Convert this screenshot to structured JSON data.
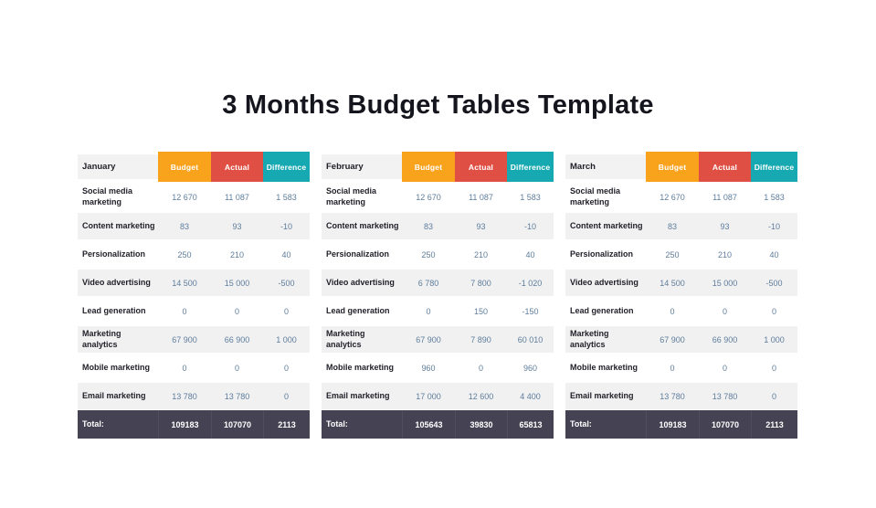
{
  "title": "3 Months Budget Tables Template",
  "columns": [
    "Budget",
    "Actual",
    "Difference"
  ],
  "row_labels": [
    "Social media marketing",
    "Content marketing",
    "Persionalization",
    "Video advertising",
    "Lead generation",
    "Marketing analytics",
    "Mobile marketing",
    "Email marketing"
  ],
  "total_label": "Total:",
  "colors": {
    "budget_header": "#F9A21C",
    "actual_header": "#E04F43",
    "difference_header": "#16A9B1",
    "total_row_bg": "#454254",
    "row_stripe": "#F1F1F2",
    "month_band": "#F2F2F3",
    "value_text": "#5E7D9C",
    "label_text": "#1F1F28",
    "title_text": "#15151E"
  },
  "tables": [
    {
      "month": "January",
      "rows": [
        [
          "12 670",
          "11 087",
          "1 583"
        ],
        [
          "83",
          "93",
          "-10"
        ],
        [
          "250",
          "210",
          "40"
        ],
        [
          "14 500",
          "15 000",
          "-500"
        ],
        [
          "0",
          "0",
          "0"
        ],
        [
          "67 900",
          "66 900",
          "1 000"
        ],
        [
          "0",
          "0",
          "0"
        ],
        [
          "13 780",
          "13 780",
          "0"
        ]
      ],
      "totals": [
        "109183",
        "107070",
        "2113"
      ]
    },
    {
      "month": "February",
      "rows": [
        [
          "12 670",
          "11 087",
          "1 583"
        ],
        [
          "83",
          "93",
          "-10"
        ],
        [
          "250",
          "210",
          "40"
        ],
        [
          "6 780",
          "7 800",
          "-1 020"
        ],
        [
          "0",
          "150",
          "-150"
        ],
        [
          "67 900",
          "7 890",
          "60 010"
        ],
        [
          "960",
          "0",
          "960"
        ],
        [
          "17 000",
          "12 600",
          "4 400"
        ]
      ],
      "totals": [
        "105643",
        "39830",
        "65813"
      ]
    },
    {
      "month": "March",
      "rows": [
        [
          "12 670",
          "11 087",
          "1 583"
        ],
        [
          "83",
          "93",
          "-10"
        ],
        [
          "250",
          "210",
          "40"
        ],
        [
          "14 500",
          "15 000",
          "-500"
        ],
        [
          "0",
          "0",
          "0"
        ],
        [
          "67 900",
          "66 900",
          "1 000"
        ],
        [
          "0",
          "0",
          "0"
        ],
        [
          "13 780",
          "13 780",
          "0"
        ]
      ],
      "totals": [
        "109183",
        "107070",
        "2113"
      ]
    }
  ]
}
